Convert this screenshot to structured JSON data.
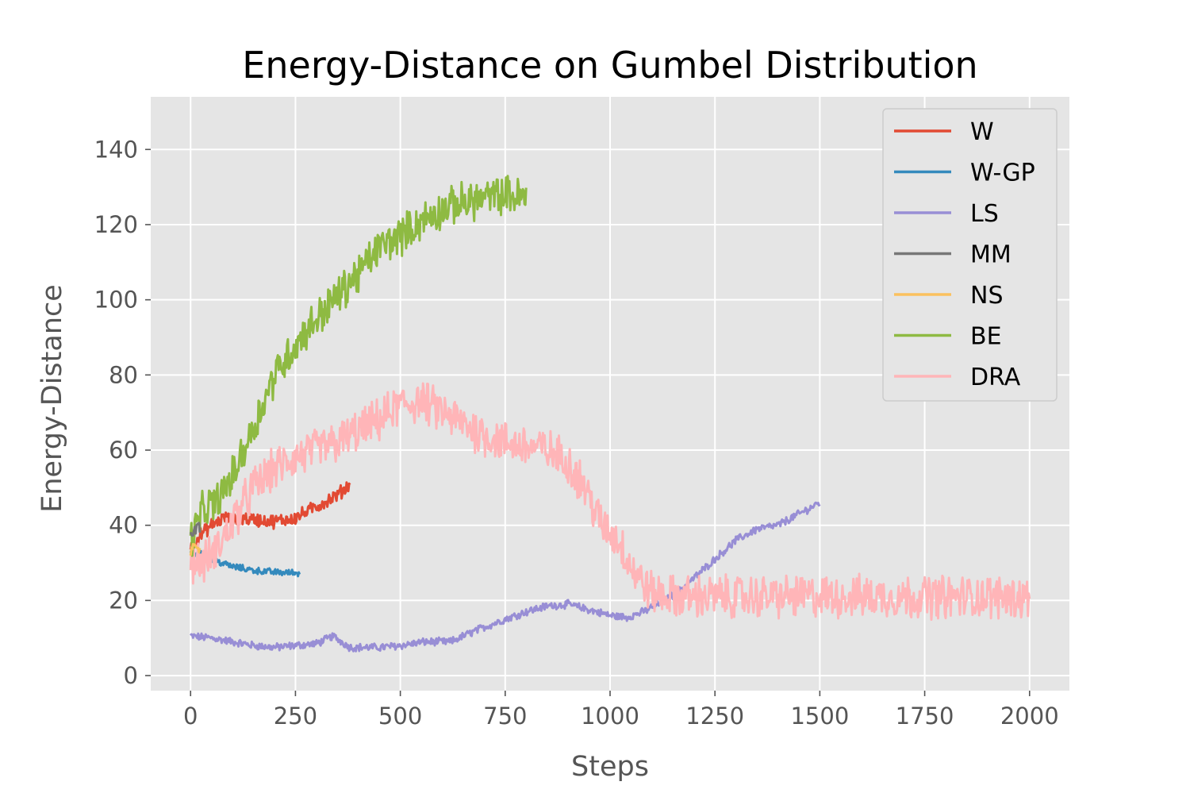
{
  "chart_data": {
    "type": "line",
    "title": "Energy-Distance on Gumbel Distribution",
    "xlabel": "Steps",
    "ylabel": "Energy-Distance",
    "xlim": [
      -95,
      2095
    ],
    "ylim": [
      -4,
      154
    ],
    "xticks": [
      0,
      250,
      500,
      750,
      1000,
      1250,
      1500,
      1750,
      2000
    ],
    "yticks": [
      0,
      20,
      40,
      60,
      80,
      100,
      120,
      140
    ],
    "grid": true,
    "legend_position": "top-right",
    "colors": {
      "background": "#E5E5E5",
      "grid": "#FFFFFF",
      "text": "#555555",
      "title": "#000000"
    },
    "series": [
      {
        "name": "W",
        "color": "#E24A33",
        "noise": 1.6,
        "points": [
          [
            0,
            34
          ],
          [
            20,
            37
          ],
          [
            50,
            40
          ],
          [
            80,
            42
          ],
          [
            100,
            41
          ],
          [
            120,
            42
          ],
          [
            150,
            41.5
          ],
          [
            200,
            41
          ],
          [
            250,
            42
          ],
          [
            300,
            45
          ],
          [
            350,
            48
          ],
          [
            380,
            51
          ]
        ]
      },
      {
        "name": "W-GP",
        "color": "#348ABD",
        "noise": 0.8,
        "points": [
          [
            0,
            33
          ],
          [
            30,
            32
          ],
          [
            60,
            30.5
          ],
          [
            100,
            29
          ],
          [
            150,
            28
          ],
          [
            200,
            27.5
          ],
          [
            260,
            27.3
          ]
        ]
      },
      {
        "name": "LS",
        "color": "#988ED5",
        "noise": 0.9,
        "points": [
          [
            0,
            10.5
          ],
          [
            50,
            10
          ],
          [
            100,
            9
          ],
          [
            150,
            8
          ],
          [
            200,
            7.5
          ],
          [
            250,
            8
          ],
          [
            300,
            8.5
          ],
          [
            340,
            10.5
          ],
          [
            380,
            7.5
          ],
          [
            450,
            7.5
          ],
          [
            500,
            8
          ],
          [
            560,
            9
          ],
          [
            620,
            9
          ],
          [
            680,
            12
          ],
          [
            750,
            15
          ],
          [
            800,
            17
          ],
          [
            850,
            18.5
          ],
          [
            900,
            19
          ],
          [
            950,
            17.5
          ],
          [
            1000,
            16
          ],
          [
            1040,
            15.5
          ],
          [
            1080,
            17
          ],
          [
            1120,
            19.5
          ],
          [
            1160,
            22
          ],
          [
            1200,
            26
          ],
          [
            1250,
            31
          ],
          [
            1300,
            36
          ],
          [
            1350,
            39
          ],
          [
            1400,
            40
          ],
          [
            1450,
            43
          ],
          [
            1500,
            46
          ]
        ]
      },
      {
        "name": "MM",
        "color": "#777777",
        "noise": 1.5,
        "points": [
          [
            0,
            37
          ],
          [
            8,
            39
          ],
          [
            16,
            40
          ],
          [
            22,
            39
          ]
        ]
      },
      {
        "name": "NS",
        "color": "#FBC15E",
        "noise": 1.2,
        "points": [
          [
            0,
            33
          ],
          [
            8,
            35
          ],
          [
            16,
            34
          ],
          [
            22,
            33
          ]
        ]
      },
      {
        "name": "BE",
        "color": "#8EBA42",
        "noise": 4.5,
        "points": [
          [
            0,
            36
          ],
          [
            30,
            44
          ],
          [
            60,
            46
          ],
          [
            100,
            53
          ],
          [
            150,
            66
          ],
          [
            200,
            80
          ],
          [
            250,
            88
          ],
          [
            300,
            95
          ],
          [
            350,
            101
          ],
          [
            400,
            107
          ],
          [
            450,
            114
          ],
          [
            500,
            117
          ],
          [
            550,
            121
          ],
          [
            600,
            124
          ],
          [
            650,
            126
          ],
          [
            700,
            127
          ],
          [
            750,
            128
          ],
          [
            800,
            127
          ]
        ]
      },
      {
        "name": "DRA",
        "color": "#FFB5B8",
        "noise": 5.0,
        "points": [
          [
            0,
            31
          ],
          [
            30,
            30
          ],
          [
            60,
            33
          ],
          [
            100,
            41
          ],
          [
            150,
            50
          ],
          [
            200,
            55
          ],
          [
            250,
            58
          ],
          [
            300,
            60
          ],
          [
            350,
            62
          ],
          [
            400,
            65
          ],
          [
            450,
            68
          ],
          [
            500,
            72
          ],
          [
            550,
            73
          ],
          [
            600,
            70
          ],
          [
            650,
            67
          ],
          [
            700,
            64
          ],
          [
            750,
            62
          ],
          [
            800,
            61
          ],
          [
            850,
            60
          ],
          [
            900,
            57
          ],
          [
            940,
            50
          ],
          [
            980,
            40
          ],
          [
            1020,
            36
          ],
          [
            1060,
            27
          ],
          [
            1100,
            22
          ],
          [
            1150,
            21
          ],
          [
            1200,
            21
          ],
          [
            1300,
            21
          ],
          [
            1400,
            21
          ],
          [
            1500,
            21
          ],
          [
            1600,
            21
          ],
          [
            1700,
            21
          ],
          [
            1800,
            21
          ],
          [
            1900,
            21
          ],
          [
            2000,
            20.8
          ]
        ]
      }
    ]
  }
}
